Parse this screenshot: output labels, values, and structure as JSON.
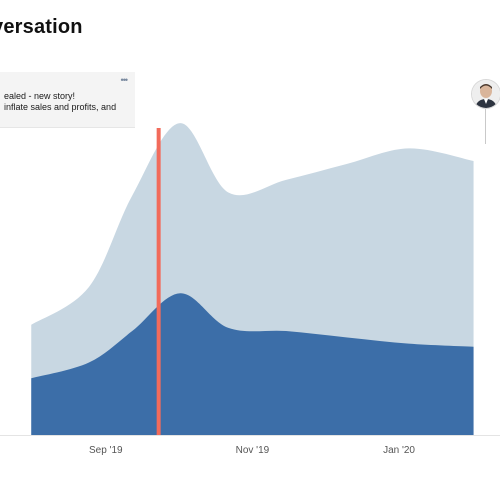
{
  "header": {
    "title": "versation"
  },
  "annotation": {
    "line1": "ealed - new story!",
    "line2": "inflate sales and profits, and",
    "menu_glyph": "•••",
    "marker_color": "#f26b5b"
  },
  "avatar": {
    "icon": "user-avatar"
  },
  "colors": {
    "back_series": "#c8d7e2",
    "front_series": "#3c6ea8",
    "marker": "#f26b5b"
  },
  "chart_data": {
    "type": "area",
    "x_tick_labels": [
      "Sep '19",
      "Nov '19",
      "Jan '20"
    ],
    "ylim": [
      0,
      100
    ],
    "grid": false,
    "series": [
      {
        "values": [
          {
            "x": "2019-08-01",
            "y": 35
          },
          {
            "x": "2019-08-25",
            "y": 47
          },
          {
            "x": "2019-09-12",
            "y": 76
          },
          {
            "x": "2019-10-02",
            "y": 99
          },
          {
            "x": "2019-10-22",
            "y": 77
          },
          {
            "x": "2019-11-15",
            "y": 81
          },
          {
            "x": "2019-12-10",
            "y": 86
          },
          {
            "x": "2020-01-05",
            "y": 91
          },
          {
            "x": "2020-02-01",
            "y": 87
          }
        ]
      },
      {
        "values": [
          {
            "x": "2019-08-01",
            "y": 18
          },
          {
            "x": "2019-08-25",
            "y": 23
          },
          {
            "x": "2019-09-12",
            "y": 33
          },
          {
            "x": "2019-10-02",
            "y": 45
          },
          {
            "x": "2019-10-22",
            "y": 34
          },
          {
            "x": "2019-11-15",
            "y": 33
          },
          {
            "x": "2019-12-10",
            "y": 31
          },
          {
            "x": "2020-01-05",
            "y": 29
          },
          {
            "x": "2020-02-01",
            "y": 28
          }
        ]
      }
    ],
    "marker_x": "2019-09-23"
  }
}
